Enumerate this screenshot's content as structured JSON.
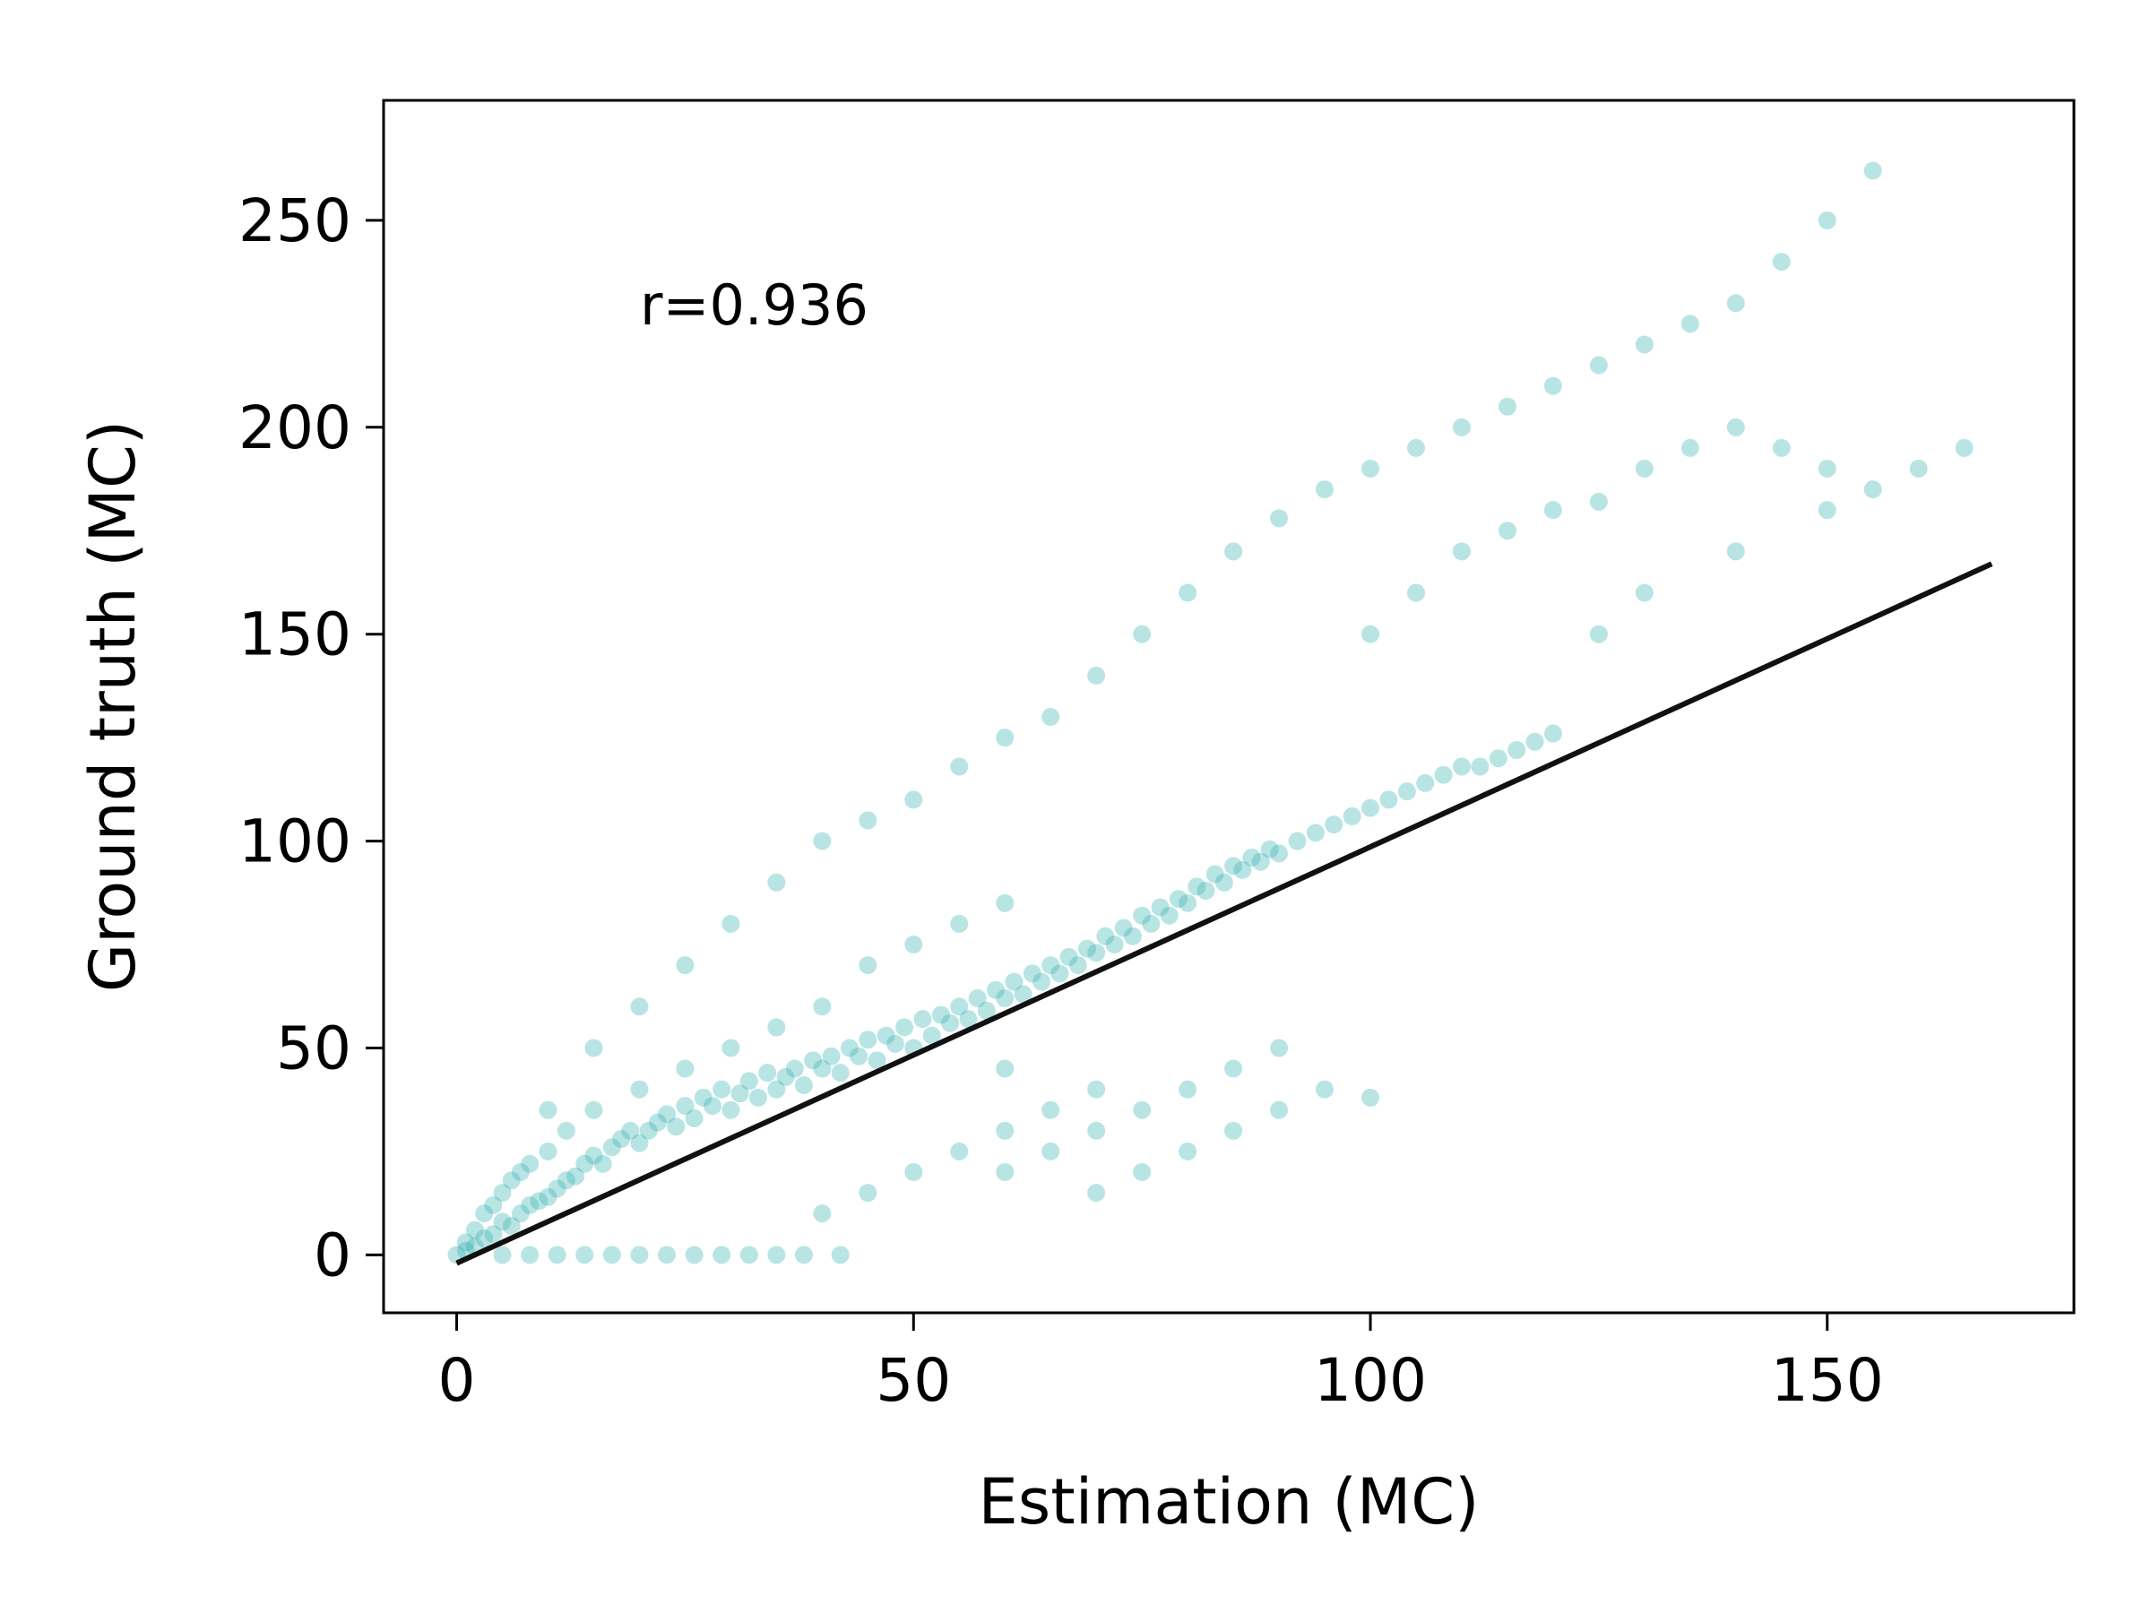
{
  "chart_data": {
    "type": "scatter",
    "title": "",
    "xlabel": "Estimation (MC)",
    "ylabel": "Ground truth (MC)",
    "xlim": [
      -8,
      177
    ],
    "ylim": [
      -14,
      279
    ],
    "xticks": [
      0,
      50,
      100,
      150
    ],
    "yticks": [
      0,
      50,
      100,
      150,
      200,
      250
    ],
    "annotation": "r=0.936",
    "grid": false,
    "legend": "none",
    "colors": {
      "points": "#36b3b3",
      "fit_line": "#111111",
      "axes": "#000000"
    },
    "fit_line": {
      "x": [
        0,
        168
      ],
      "y": [
        -2,
        167
      ]
    },
    "series": [
      {
        "points": [
          [
            0,
            0
          ],
          [
            1,
            1
          ],
          [
            1,
            3
          ],
          [
            2,
            2
          ],
          [
            2,
            6
          ],
          [
            3,
            4
          ],
          [
            3,
            10
          ],
          [
            4,
            5
          ],
          [
            4,
            12
          ],
          [
            5,
            8
          ],
          [
            5,
            15
          ],
          [
            6,
            7
          ],
          [
            6,
            18
          ],
          [
            7,
            10
          ],
          [
            7,
            20
          ],
          [
            8,
            12
          ],
          [
            8,
            22
          ],
          [
            9,
            13
          ],
          [
            10,
            14
          ],
          [
            10,
            25
          ],
          [
            11,
            16
          ],
          [
            12,
            18
          ],
          [
            12,
            30
          ],
          [
            13,
            19
          ],
          [
            14,
            22
          ],
          [
            15,
            24
          ],
          [
            15,
            35
          ],
          [
            16,
            22
          ],
          [
            17,
            26
          ],
          [
            18,
            28
          ],
          [
            19,
            30
          ],
          [
            20,
            27
          ],
          [
            20,
            40
          ],
          [
            21,
            30
          ],
          [
            22,
            32
          ],
          [
            23,
            34
          ],
          [
            24,
            31
          ],
          [
            25,
            36
          ],
          [
            25,
            45
          ],
          [
            26,
            33
          ],
          [
            27,
            38
          ],
          [
            28,
            36
          ],
          [
            29,
            40
          ],
          [
            30,
            35
          ],
          [
            30,
            50
          ],
          [
            31,
            39
          ],
          [
            32,
            42
          ],
          [
            33,
            38
          ],
          [
            34,
            44
          ],
          [
            35,
            40
          ],
          [
            35,
            55
          ],
          [
            36,
            43
          ],
          [
            37,
            45
          ],
          [
            38,
            41
          ],
          [
            39,
            47
          ],
          [
            40,
            45
          ],
          [
            40,
            60
          ],
          [
            41,
            48
          ],
          [
            42,
            44
          ],
          [
            43,
            50
          ],
          [
            44,
            48
          ],
          [
            45,
            52
          ],
          [
            45,
            70
          ],
          [
            46,
            47
          ],
          [
            47,
            53
          ],
          [
            48,
            51
          ],
          [
            49,
            55
          ],
          [
            50,
            50
          ],
          [
            50,
            75
          ],
          [
            51,
            57
          ],
          [
            52,
            53
          ],
          [
            53,
            58
          ],
          [
            54,
            56
          ],
          [
            55,
            60
          ],
          [
            55,
            80
          ],
          [
            56,
            57
          ],
          [
            57,
            62
          ],
          [
            58,
            59
          ],
          [
            59,
            64
          ],
          [
            60,
            62
          ],
          [
            60,
            85
          ],
          [
            61,
            66
          ],
          [
            62,
            63
          ],
          [
            63,
            68
          ],
          [
            64,
            66
          ],
          [
            65,
            70
          ],
          [
            66,
            68
          ],
          [
            67,
            72
          ],
          [
            68,
            70
          ],
          [
            69,
            74
          ],
          [
            70,
            73
          ],
          [
            71,
            77
          ],
          [
            72,
            75
          ],
          [
            73,
            79
          ],
          [
            74,
            77
          ],
          [
            75,
            82
          ],
          [
            76,
            80
          ],
          [
            77,
            84
          ],
          [
            78,
            82
          ],
          [
            79,
            86
          ],
          [
            80,
            85
          ],
          [
            81,
            89
          ],
          [
            82,
            88
          ],
          [
            83,
            92
          ],
          [
            84,
            90
          ],
          [
            85,
            94
          ],
          [
            86,
            93
          ],
          [
            87,
            96
          ],
          [
            88,
            95
          ],
          [
            89,
            98
          ],
          [
            90,
            97
          ],
          [
            92,
            100
          ],
          [
            94,
            102
          ],
          [
            96,
            104
          ],
          [
            98,
            106
          ],
          [
            100,
            108
          ],
          [
            102,
            110
          ],
          [
            104,
            112
          ],
          [
            106,
            114
          ],
          [
            108,
            116
          ],
          [
            110,
            118
          ],
          [
            112,
            118
          ],
          [
            114,
            120
          ],
          [
            116,
            122
          ],
          [
            118,
            124
          ],
          [
            120,
            126
          ],
          [
            5,
            0
          ],
          [
            8,
            0
          ],
          [
            11,
            0
          ],
          [
            14,
            0
          ],
          [
            17,
            0
          ],
          [
            20,
            0
          ],
          [
            23,
            0
          ],
          [
            26,
            0
          ],
          [
            29,
            0
          ],
          [
            32,
            0
          ],
          [
            35,
            0
          ],
          [
            38,
            0
          ],
          [
            42,
            0
          ],
          [
            10,
            35
          ],
          [
            15,
            50
          ],
          [
            20,
            60
          ],
          [
            25,
            70
          ],
          [
            30,
            80
          ],
          [
            35,
            90
          ],
          [
            40,
            100
          ],
          [
            45,
            105
          ],
          [
            50,
            110
          ],
          [
            55,
            118
          ],
          [
            60,
            125
          ],
          [
            65,
            130
          ],
          [
            70,
            140
          ],
          [
            75,
            150
          ],
          [
            80,
            160
          ],
          [
            85,
            170
          ],
          [
            90,
            178
          ],
          [
            95,
            185
          ],
          [
            100,
            190
          ],
          [
            105,
            195
          ],
          [
            110,
            200
          ],
          [
            115,
            205
          ],
          [
            120,
            210
          ],
          [
            125,
            215
          ],
          [
            130,
            220
          ],
          [
            135,
            225
          ],
          [
            140,
            230
          ],
          [
            145,
            240
          ],
          [
            150,
            250
          ],
          [
            155,
            262
          ],
          [
            100,
            150
          ],
          [
            105,
            160
          ],
          [
            110,
            170
          ],
          [
            115,
            175
          ],
          [
            120,
            180
          ],
          [
            125,
            182
          ],
          [
            130,
            190
          ],
          [
            135,
            195
          ],
          [
            140,
            200
          ],
          [
            145,
            195
          ],
          [
            150,
            190
          ],
          [
            155,
            185
          ],
          [
            160,
            190
          ],
          [
            165,
            195
          ],
          [
            130,
            160
          ],
          [
            140,
            170
          ],
          [
            150,
            180
          ],
          [
            125,
            150
          ],
          [
            60,
            20
          ],
          [
            65,
            25
          ],
          [
            70,
            30
          ],
          [
            75,
            35
          ],
          [
            80,
            40
          ],
          [
            85,
            45
          ],
          [
            90,
            50
          ],
          [
            95,
            40
          ],
          [
            100,
            38
          ],
          [
            85,
            30
          ],
          [
            75,
            20
          ],
          [
            70,
            15
          ],
          [
            50,
            20
          ],
          [
            55,
            25
          ],
          [
            60,
            30
          ],
          [
            45,
            15
          ],
          [
            40,
            10
          ],
          [
            65,
            35
          ],
          [
            80,
            25
          ],
          [
            90,
            35
          ],
          [
            70,
            40
          ],
          [
            60,
            45
          ]
        ]
      }
    ]
  }
}
